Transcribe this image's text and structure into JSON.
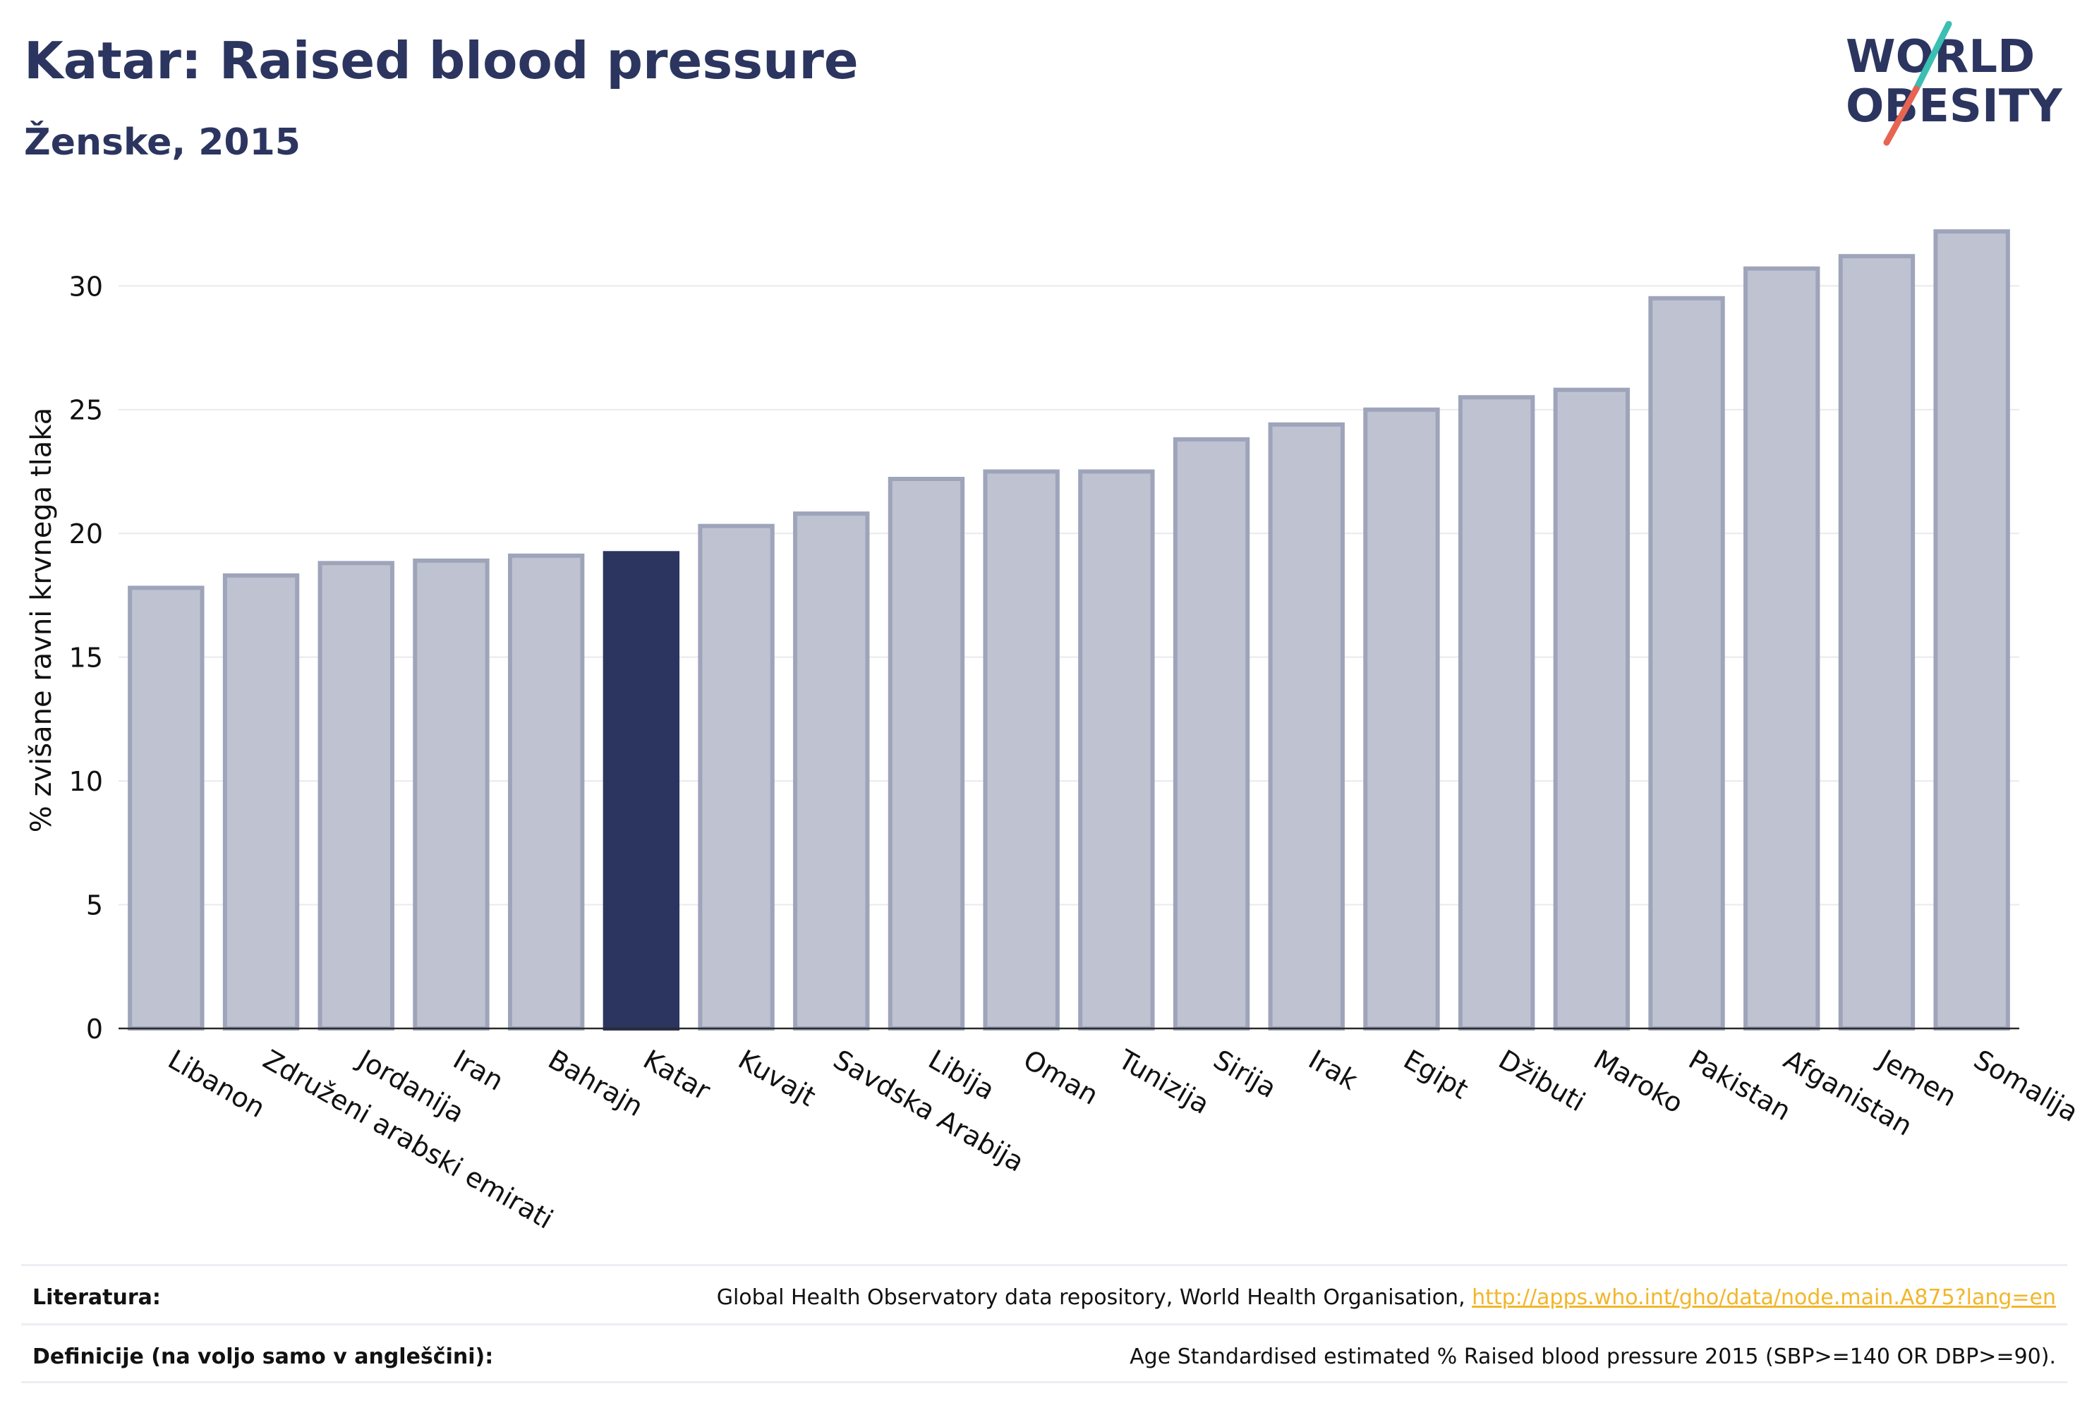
{
  "header": {
    "title": "Katar: Raised blood pressure",
    "subtitle": "Ženske, 2015"
  },
  "logo": {
    "line1": "WORLD",
    "line2": "OBESITY",
    "accent_teal": "#3bbfb2",
    "accent_red": "#e86452",
    "text_color": "#2b355f"
  },
  "colors": {
    "highlight": "#2b355f",
    "bar_fill": "#bfc3d1",
    "bar_stroke": "#9ea4ba",
    "grid": "#e9e9ef",
    "axis": "#2b2b2b"
  },
  "chart_data": {
    "type": "bar",
    "title": "Katar: Raised blood pressure",
    "subtitle": "Ženske, 2015",
    "xlabel": "",
    "ylabel": "% zvišane ravni krvnega tlaka",
    "ylim": [
      0,
      33
    ],
    "yticks": [
      0,
      5,
      10,
      15,
      20,
      25,
      30
    ],
    "grid": true,
    "highlight": "Katar",
    "categories": [
      "Libanon",
      "Združeni arabski emirati",
      "Jordanija",
      "Iran",
      "Bahrajn",
      "Katar",
      "Kuvajt",
      "Savdska Arabija",
      "Libija",
      "Oman",
      "Tunizija",
      "Sirija",
      "Irak",
      "Egipt",
      "Džibuti",
      "Maroko",
      "Pakistan",
      "Afganistan",
      "Jemen",
      "Somalija"
    ],
    "values": [
      17.8,
      18.3,
      18.8,
      18.9,
      19.1,
      19.2,
      20.3,
      20.8,
      22.2,
      22.5,
      22.5,
      23.8,
      24.4,
      25.0,
      25.5,
      25.8,
      29.5,
      30.7,
      31.2,
      32.2
    ]
  },
  "footer": {
    "sources_label": "Literatura:",
    "sources_text": "Global Health Observatory data repository, World Health Organisation, ",
    "sources_link": "http://apps.who.int/gho/data/node.main.A875?lang=en",
    "definitions_label": "Definicije (na voljo samo v angleščini):",
    "definitions_text": "Age Standardised estimated % Raised blood pressure 2015 (SBP>=140 OR DBP>=90)."
  }
}
